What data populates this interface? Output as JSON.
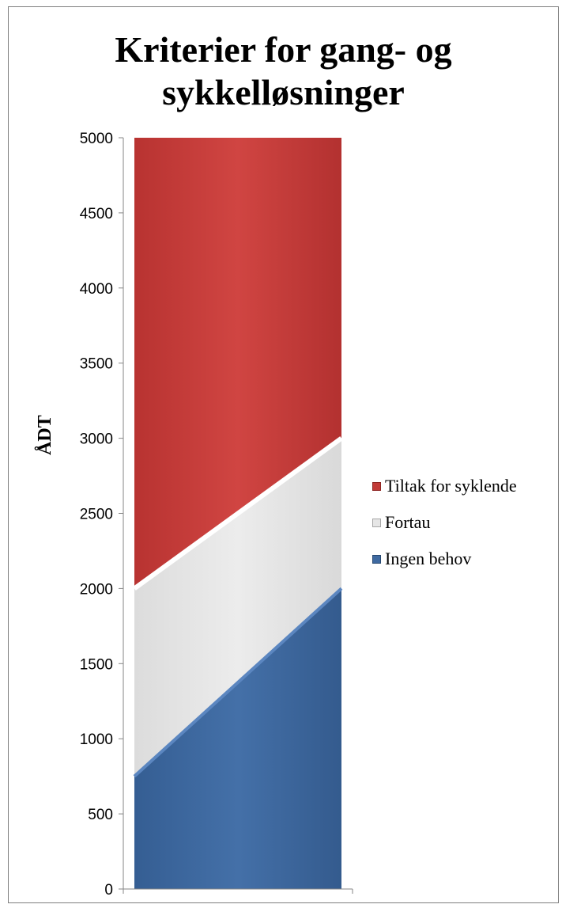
{
  "chart_data": {
    "type": "area",
    "title": [
      "Kriterier for gang- og",
      "sykkelløsninger"
    ],
    "ylabel": "ÅDT",
    "xlabel": "",
    "ylim": [
      0,
      5000
    ],
    "yticks": [
      "0",
      "500",
      "1000",
      "1500",
      "2000",
      "2500",
      "3000",
      "3500",
      "4000",
      "4500",
      "5000"
    ],
    "x": [
      0,
      1
    ],
    "series": [
      {
        "name": "Ingen behov",
        "color": "#3f6aa1",
        "lower": [
          0,
          0
        ],
        "upper": [
          750,
          2000
        ]
      },
      {
        "name": "Fortau",
        "color": "#e6e6e6",
        "lower": [
          750,
          2000
        ],
        "upper": [
          2000,
          3000
        ]
      },
      {
        "name": "Tiltak for syklende",
        "color": "#c23b38",
        "lower": [
          2000,
          3000
        ],
        "upper": [
          5000,
          5000
        ]
      }
    ],
    "legend": {
      "position": "right",
      "items": [
        "Tiltak for syklende",
        "Fortau",
        "Ingen behov"
      ]
    },
    "grid": false
  }
}
